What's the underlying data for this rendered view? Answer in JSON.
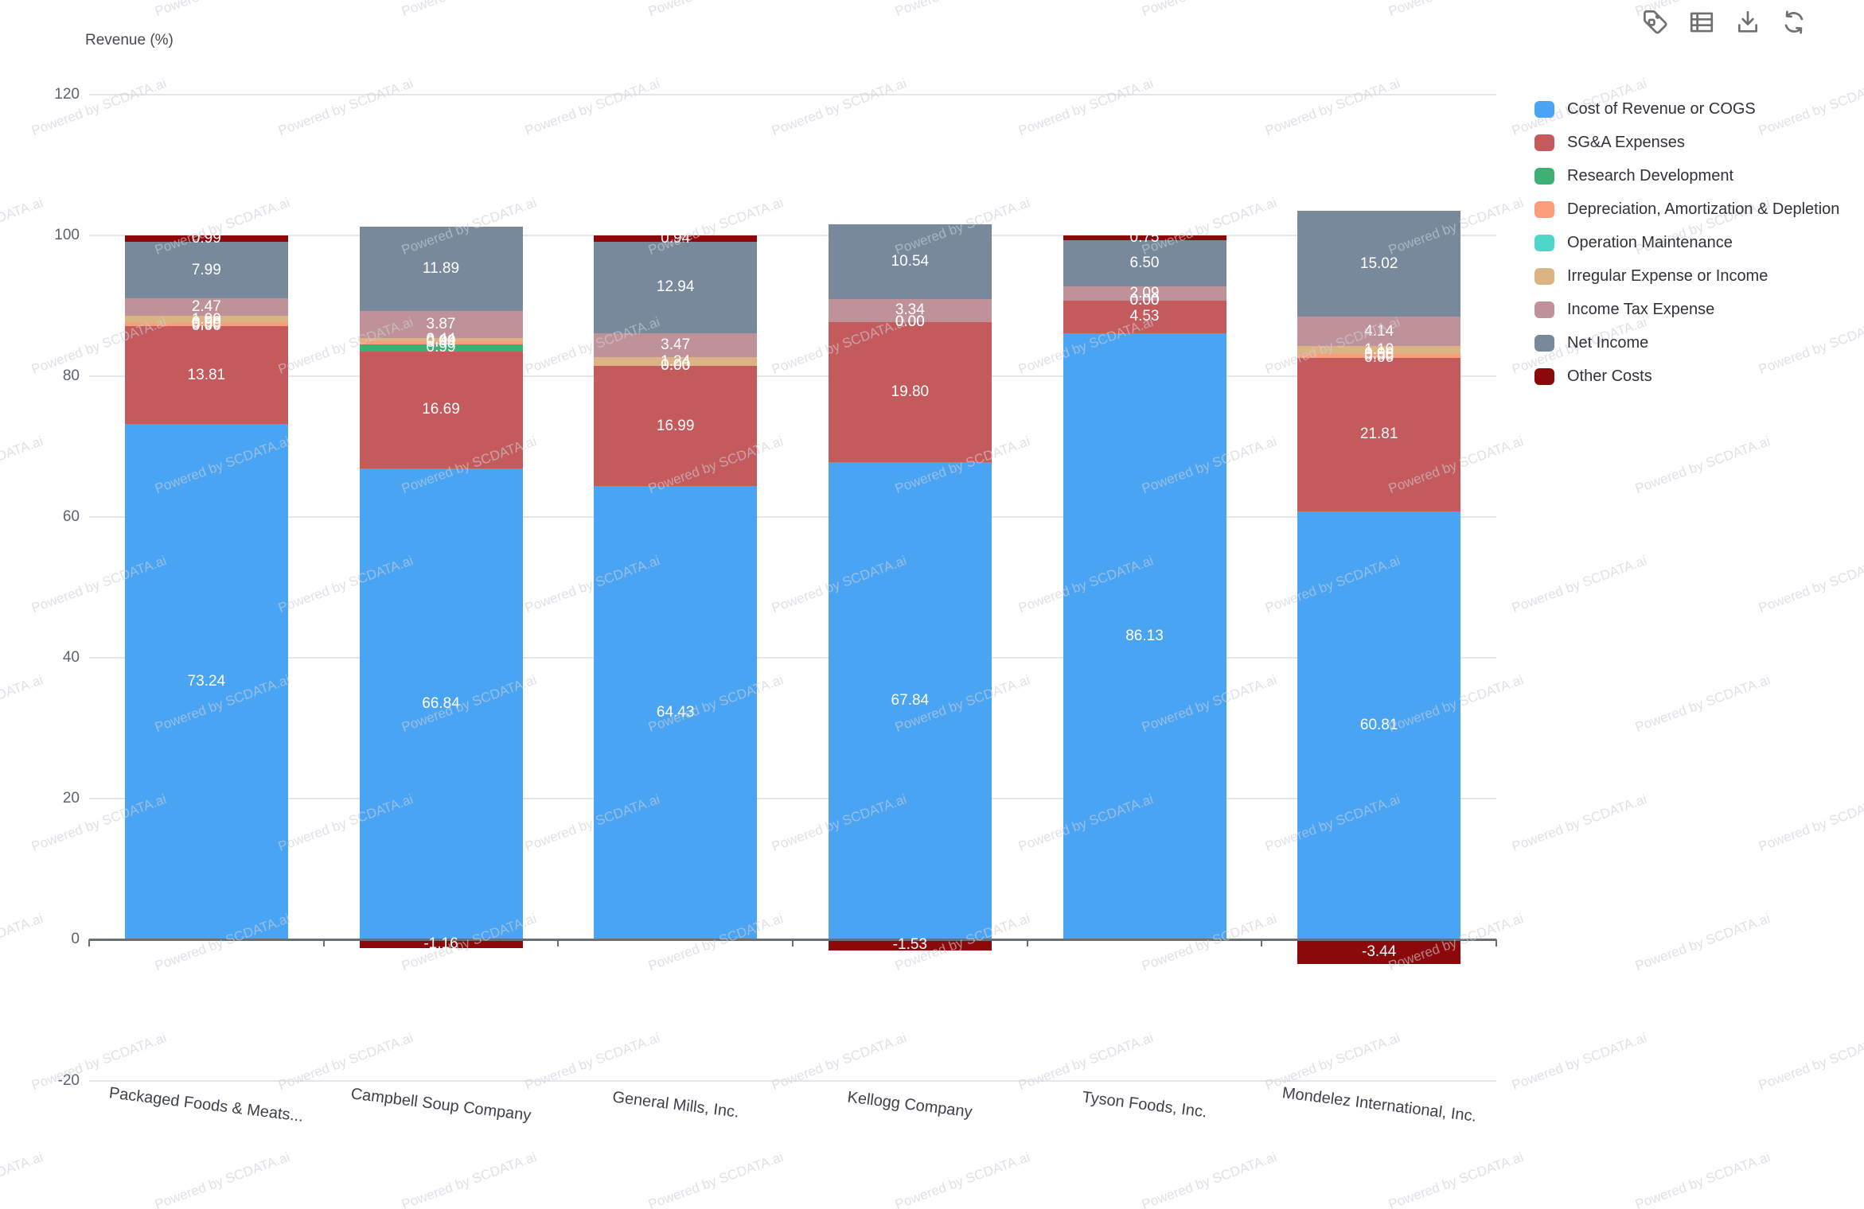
{
  "watermark": {
    "text": "Powered by SCDATA.ai"
  },
  "toolbar": {
    "icon_color": "#707070",
    "buttons": [
      "tag",
      "table",
      "download",
      "refresh"
    ]
  },
  "chart_data": {
    "type": "bar",
    "subtype": "stacked-percent",
    "title": "Revenue (%)",
    "ylabel": "Revenue (%)",
    "xlabel": "",
    "ylim": [
      -20,
      120
    ],
    "yticks": [
      120,
      100,
      80,
      60,
      40,
      20,
      0,
      -20
    ],
    "grid": true,
    "legend_position": "right",
    "bar_label_color": "#ffffff",
    "grid_color": "#e5e6ea",
    "zero_line_color": "#6a6f75",
    "categories": [
      "Packaged Foods & Meats...",
      "Campbell Soup Company",
      "General Mills, Inc.",
      "Kellogg Company",
      "Tyson Foods, Inc.",
      "Mondelez International, Inc."
    ],
    "series": [
      {
        "name": "Cost of Revenue or COGS",
        "color": "#4aa4f4",
        "values": [
          73.24,
          66.84,
          64.43,
          67.84,
          86.13,
          60.81
        ]
      },
      {
        "name": "SG&A Expenses",
        "color": "#c45a5c",
        "values": [
          13.81,
          16.69,
          16.99,
          19.8,
          4.53,
          21.81
        ]
      },
      {
        "name": "Research Development",
        "color": "#3cb173",
        "values": [
          0.0,
          0.99,
          0.0,
          0.0,
          0.0,
          0.0
        ]
      },
      {
        "name": "Depreciation, Amortization & Depletion",
        "color": "#fb9d7b",
        "values": [
          0.5,
          0.44,
          0.0,
          0.0,
          0.0,
          0.56
        ]
      },
      {
        "name": "Operation Maintenance",
        "color": "#4fd6cb",
        "values": [
          0.0,
          0.0,
          0.0,
          0.0,
          0.0,
          0.0
        ]
      },
      {
        "name": "Irregular Expense or Income",
        "color": "#dcb483",
        "values": [
          1.0,
          0.44,
          1.24,
          0.0,
          0.0,
          1.1
        ]
      },
      {
        "name": "Income Tax Expense",
        "color": "#bf929a",
        "values": [
          2.47,
          3.87,
          3.47,
          3.34,
          2.09,
          4.14
        ]
      },
      {
        "name": "Net Income",
        "color": "#78899b",
        "values": [
          7.99,
          11.89,
          12.94,
          10.54,
          6.5,
          15.02
        ]
      },
      {
        "name": "Other Costs",
        "color": "#8c090b",
        "values": [
          0.99,
          -1.16,
          0.94,
          -1.53,
          0.75,
          -3.44
        ]
      }
    ]
  }
}
